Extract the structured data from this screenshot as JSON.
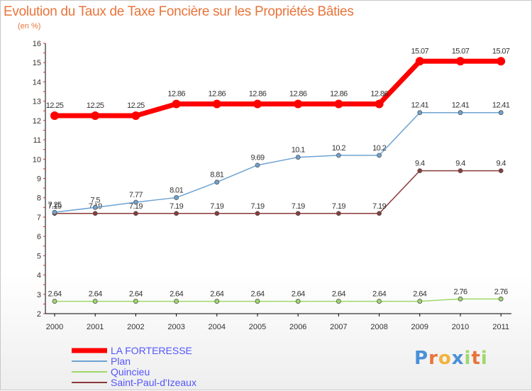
{
  "chart_data": {
    "type": "line",
    "title": "Evolution du Taux de Taxe Foncière sur les Propriétés Bâties",
    "subtitle": "(en %)",
    "x": [
      "2000",
      "2001",
      "2002",
      "2003",
      "2004",
      "2005",
      "2006",
      "2007",
      "2008",
      "2009",
      "2010",
      "2011"
    ],
    "ylim": [
      2,
      16
    ],
    "yticks": [
      2,
      3,
      4,
      5,
      6,
      7,
      8,
      9,
      10,
      11,
      12,
      13,
      14,
      15,
      16
    ],
    "grid": false,
    "legend_position": "bottom-left",
    "series": [
      {
        "name": "LA FORTERESSE",
        "color": "#ff0000",
        "values": [
          12.25,
          12.25,
          12.25,
          12.86,
          12.86,
          12.86,
          12.86,
          12.86,
          12.86,
          15.07,
          15.07,
          15.07
        ],
        "labels": [
          "12.25",
          "12.25",
          "12.25",
          "12.86",
          "12.86",
          "12.86",
          "12.86",
          "12.86",
          "12.86",
          "15.07",
          "15.07",
          "15.07"
        ]
      },
      {
        "name": "Plan",
        "color": "#6ea3d2",
        "values": [
          7.25,
          7.5,
          7.77,
          8.01,
          8.81,
          9.69,
          10.1,
          10.2,
          10.2,
          12.41,
          12.41,
          12.41
        ],
        "labels": [
          "7.25",
          "7.5",
          "7.77",
          "8.01",
          "8.81",
          "9.69",
          "10.1",
          "10.2",
          "10.2",
          "12.41",
          "12.41",
          "12.41"
        ]
      },
      {
        "name": "Quincieu",
        "color": "#9ed86a",
        "values": [
          2.64,
          2.64,
          2.64,
          2.64,
          2.64,
          2.64,
          2.64,
          2.64,
          2.64,
          2.64,
          2.76,
          2.76
        ],
        "labels": [
          "2.64",
          "2.64",
          "2.64",
          "2.64",
          "2.64",
          "2.64",
          "2.64",
          "2.64",
          "2.64",
          "2.64",
          "2.76",
          "2.76"
        ]
      },
      {
        "name": "Saint-Paul-d'Izeaux",
        "color": "#8b3a3a",
        "values": [
          7.19,
          7.19,
          7.19,
          7.19,
          7.19,
          7.19,
          7.19,
          7.19,
          7.19,
          9.4,
          9.4,
          9.4
        ],
        "labels": [
          "7.19",
          "7.19",
          "7.19",
          "7.19",
          "7.19",
          "7.19",
          "7.19",
          "7.19",
          "7.19",
          "9.4",
          "9.4",
          "9.4"
        ]
      }
    ]
  },
  "legend_text_color": "#5555ff",
  "logo": {
    "letters": [
      "P",
      "r",
      "o",
      "x",
      "i",
      "t",
      "i"
    ],
    "colors": [
      "#4a90d9",
      "#e8743b",
      "#f3b23c",
      "#4a90d9",
      "#9ed86a",
      "#e8743b",
      "#9ed86a"
    ]
  }
}
